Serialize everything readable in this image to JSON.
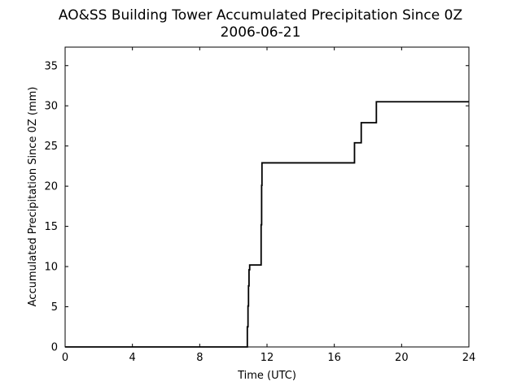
{
  "chart_data": {
    "type": "line",
    "title": "AO&SS Building Tower Accumulated Precipitation Since 0Z",
    "subtitle": "2006-06-21",
    "xlabel": "Time (UTC)",
    "ylabel": "Accumulated Precipitation Since 0Z (mm)",
    "xlim": [
      0,
      24
    ],
    "ylim": [
      0,
      37.3
    ],
    "xticks": [
      0,
      4,
      8,
      12,
      16,
      20,
      24
    ],
    "yticks": [
      0,
      5,
      10,
      15,
      20,
      25,
      30,
      35
    ],
    "grid": false,
    "line_color": "#000000",
    "series": [
      {
        "step": "post",
        "x": [
          0,
          10.8,
          10.83,
          10.87,
          10.9,
          10.93,
          10.97,
          11.63,
          11.65,
          11.68,
          11.7,
          17.2,
          17.6,
          18.5,
          24
        ],
        "y": [
          0,
          0,
          2.5,
          5.1,
          7.6,
          9.6,
          10.2,
          10.2,
          15.2,
          20.1,
          22.9,
          25.4,
          27.9,
          30.5,
          30.5
        ]
      }
    ]
  }
}
